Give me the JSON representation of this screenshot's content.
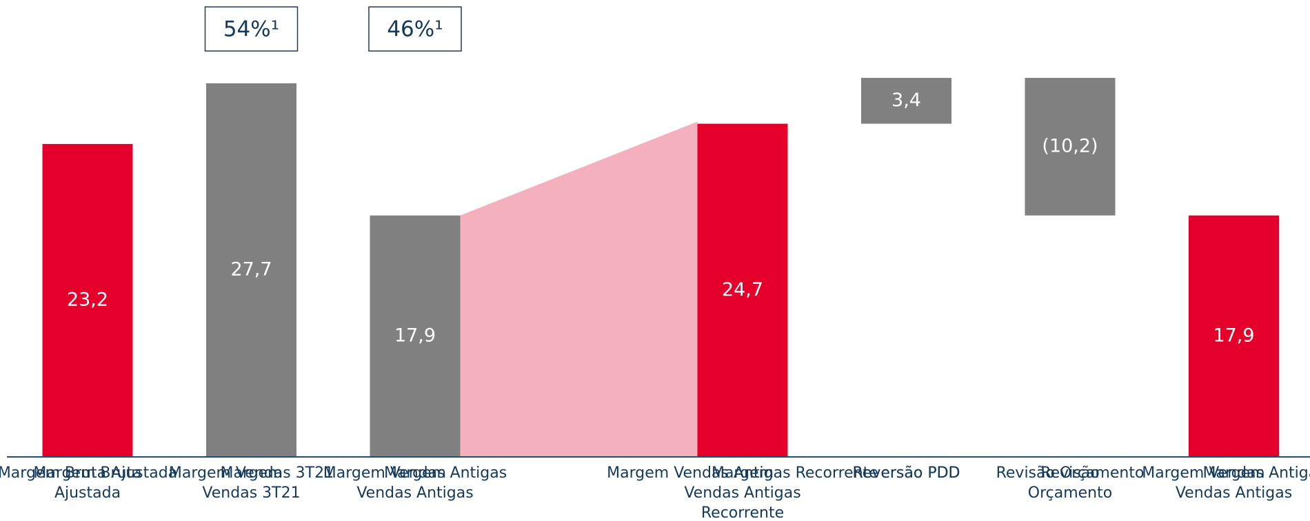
{
  "chart_data": {
    "type": "waterfall",
    "categories": [
      "Margem Bruta\nAjustada",
      "Margem\nVendas 3T21",
      "Margem\nVendas Antigas",
      null,
      "Margem\nVendas Antigas\nRecorrente",
      "Reversão PDD",
      "Revisão\nOrçamento",
      "Margem\nVendas Antigas"
    ],
    "values": [
      23.2,
      27.7,
      17.9,
      null,
      24.7,
      3.4,
      -10.2,
      17.9
    ],
    "value_labels": [
      "23,2",
      "27,7",
      "17,9",
      null,
      "24,7",
      "3,4",
      "(10,2)",
      "17,9"
    ],
    "measure": [
      "absolute",
      "absolute",
      "absolute",
      null,
      "absolute",
      "relative",
      "relative",
      "absolute"
    ],
    "colors": [
      "#e4002b",
      "#808080",
      "#808080",
      null,
      "#e4002b",
      "#808080",
      "#808080",
      "#e4002b"
    ],
    "annotations": [
      {
        "index": 1,
        "text": "54%¹"
      },
      {
        "index": 2,
        "text": "46%¹"
      }
    ],
    "connector": {
      "from": 2,
      "to": 4,
      "color": "#f4b1bd"
    },
    "axis_color": "#1f4e79"
  }
}
